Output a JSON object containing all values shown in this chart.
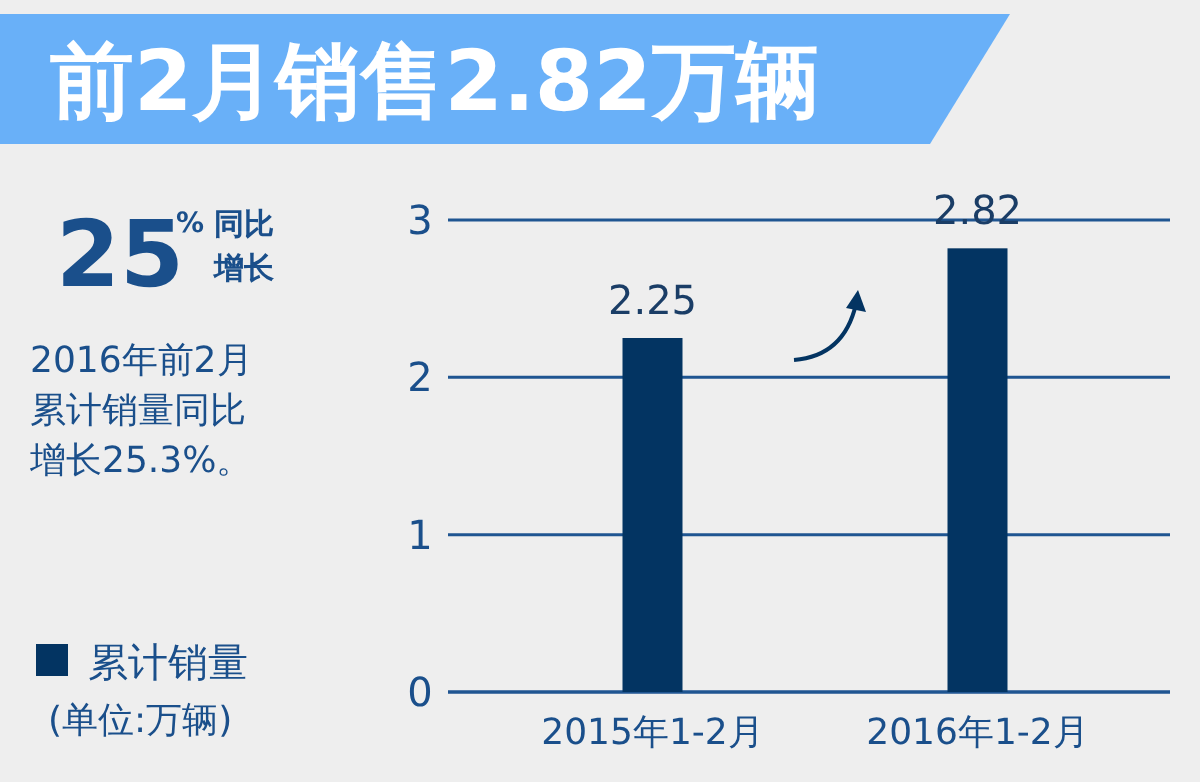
{
  "chart_data": {
    "type": "bar",
    "title": "前2月销售2.82万辆",
    "annotations": [
      "25",
      "%",
      "同比增长",
      "2016年前2月累计销量同比增长25.3%。",
      "(单位:万辆)"
    ],
    "categories": [
      "2015年1-2月",
      "2016年1-2月"
    ],
    "series": [
      {
        "name": "累计销量",
        "color": "#033462",
        "values": [
          2.25,
          2.82
        ]
      }
    ],
    "ylim": [
      0,
      3
    ],
    "yticks": [
      0,
      1,
      2,
      3
    ],
    "grid": "y",
    "legend": "left",
    "data_labels": true
  }
}
